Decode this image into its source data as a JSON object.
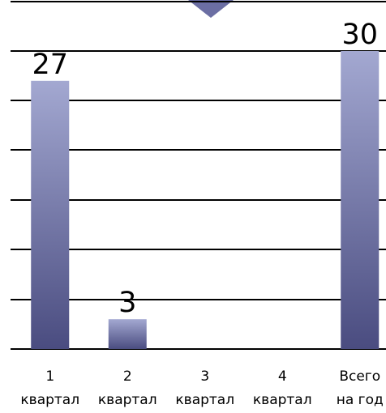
{
  "chart_data": {
    "type": "bar",
    "categories": [
      [
        "1",
        "квартал"
      ],
      [
        "2",
        "квартал"
      ],
      [
        "3",
        "квартал"
      ],
      [
        "4",
        "квартал"
      ],
      [
        "Всего",
        "на год"
      ]
    ],
    "values": [
      27,
      3,
      0,
      0,
      30
    ],
    "data_labels": [
      "27",
      "3",
      "",
      "",
      "30"
    ],
    "ylim": [
      0,
      30
    ],
    "grid": true,
    "title": "",
    "xlabel": "",
    "ylabel": "",
    "colors": {
      "bar_top": "#a3a8d1",
      "bar_bottom": "#4a4c80",
      "grid": "#000000",
      "marker": "#6b6ea3"
    }
  }
}
